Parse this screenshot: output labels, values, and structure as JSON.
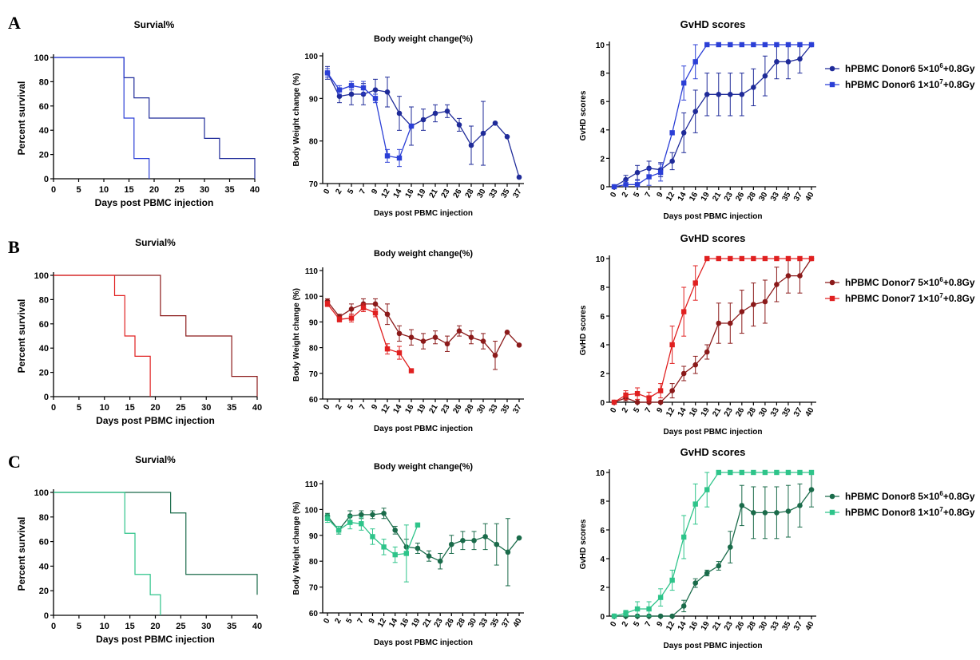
{
  "panel_letters": [
    "A",
    "B",
    "C"
  ],
  "chart_data": [
    {
      "id": "A-survival",
      "type": "line",
      "step": true,
      "title": "Survial%",
      "xlabel": "Days post PBMC injection",
      "ylabel": "Percent survival",
      "xlim": [
        0,
        40
      ],
      "ylim": [
        0,
        100
      ],
      "xticks": [
        "0",
        "5",
        "10",
        "15",
        "20",
        "25",
        "30",
        "35",
        "40"
      ],
      "yticks": [
        "0",
        "20",
        "40",
        "60",
        "80",
        "100"
      ],
      "series": [
        {
          "name": "hPBMC Donor6 5×10^6+0.8Gy",
          "color": "#1f2b99",
          "x": [
            0,
            14,
            16,
            19,
            30,
            33,
            40
          ],
          "y": [
            100,
            83.3,
            66.7,
            50,
            33.3,
            16.7,
            0
          ]
        },
        {
          "name": "hPBMC Donor6 1×10^7+0.8Gy",
          "color": "#2b3fd6",
          "x": [
            0,
            14,
            16,
            19
          ],
          "y": [
            100,
            50,
            16.7,
            0
          ]
        }
      ]
    },
    {
      "id": "A-weight",
      "type": "line",
      "title": "Body weight change(%)",
      "xlabel": "Days post PBMC injection",
      "ylabel": "Body Weight change (%)",
      "ylim": [
        70,
        100
      ],
      "categories": [
        "0",
        "2",
        "5",
        "7",
        "9",
        "12",
        "14",
        "16",
        "19",
        "21",
        "23",
        "26",
        "28",
        "30",
        "33",
        "35",
        "37"
      ],
      "yticks": [
        "70",
        "80",
        "90",
        "100"
      ],
      "series": [
        {
          "name": "hPBMC Donor6 5×10^6+0.8Gy",
          "color": "#1f2b99",
          "marker": "circle",
          "x": [
            0,
            2,
            5,
            7,
            9,
            12,
            14,
            16,
            19,
            21,
            23,
            26,
            28,
            30,
            33,
            35,
            37
          ],
          "y": [
            96,
            90.5,
            91,
            91,
            92,
            91.5,
            86.5,
            83.5,
            85,
            86.5,
            87,
            83.8,
            79,
            81.8,
            84.2,
            81,
            71.5
          ],
          "err": [
            1.5,
            1.5,
            2.5,
            2.5,
            2.5,
            3.5,
            4,
            4.5,
            2.5,
            2,
            1.5,
            1.5,
            4.5,
            7.5,
            0,
            0,
            0
          ]
        },
        {
          "name": "hPBMC Donor6 1×10^7+0.8Gy",
          "color": "#2b3fd6",
          "marker": "square",
          "x": [
            0,
            2,
            5,
            7,
            9,
            12,
            14,
            16
          ],
          "y": [
            96,
            92,
            93,
            92.5,
            90,
            76.5,
            76,
            83.5
          ],
          "err": [
            1,
            1,
            1,
            1.5,
            1,
            1.5,
            2,
            0
          ]
        }
      ]
    },
    {
      "id": "A-gvhd",
      "type": "line",
      "title": "GvHD scores",
      "xlabel": "Days post PBMC injection",
      "ylabel": "GvHD scores",
      "ylim": [
        0,
        10
      ],
      "categories": [
        "0",
        "2",
        "5",
        "7",
        "9",
        "12",
        "14",
        "16",
        "19",
        "21",
        "23",
        "26",
        "28",
        "30",
        "33",
        "35",
        "37",
        "40"
      ],
      "yticks": [
        "0",
        "2",
        "4",
        "6",
        "8",
        "10"
      ],
      "legend": "right",
      "series": [
        {
          "name": "hPBMC Donor6 5×10^6+0.8Gy",
          "label_base": "hPBMC Donor6 5×10",
          "label_exp": "6",
          "label_tail": "+0.8Gy",
          "color": "#1f2b99",
          "marker": "circle",
          "x": [
            0,
            2,
            5,
            7,
            9,
            12,
            14,
            16,
            19,
            21,
            23,
            26,
            28,
            30,
            33,
            35,
            37,
            40
          ],
          "y": [
            0,
            0.5,
            1,
            1.3,
            1.2,
            1.8,
            3.8,
            5.3,
            6.5,
            6.5,
            6.5,
            6.5,
            7,
            7.8,
            8.8,
            8.8,
            9,
            10
          ],
          "err": [
            0,
            0.3,
            0.5,
            0.5,
            0.5,
            0.6,
            1.4,
            1.5,
            1.5,
            1.5,
            1.5,
            1.5,
            1.3,
            1.4,
            1.2,
            1.2,
            1,
            0
          ]
        },
        {
          "name": "hPBMC Donor6 1×10^7+0.8Gy",
          "label_base": "hPBMC Donor6 1×10",
          "label_exp": "7",
          "label_tail": "+0.8Gy",
          "color": "#2b3fd6",
          "marker": "square",
          "x": [
            0,
            2,
            5,
            7,
            9,
            12,
            14,
            16,
            19,
            21,
            23,
            26,
            28,
            30,
            33,
            35,
            37,
            40
          ],
          "y": [
            0,
            0.15,
            0.15,
            0.7,
            1,
            3.8,
            7.3,
            8.8,
            10,
            10,
            10,
            10,
            10,
            10,
            10,
            10,
            10,
            10
          ],
          "err": [
            0,
            0.3,
            0.3,
            0.6,
            0.6,
            0,
            1.2,
            1.2,
            0,
            0,
            0,
            0,
            0,
            0,
            0,
            0,
            0,
            0
          ]
        }
      ]
    },
    {
      "id": "B-survival",
      "type": "line",
      "step": true,
      "title": "Survial%",
      "xlabel": "Days post PBMC injection",
      "ylabel": "Percent survival",
      "xlim": [
        0,
        40
      ],
      "ylim": [
        0,
        100
      ],
      "xticks": [
        "0",
        "5",
        "10",
        "15",
        "20",
        "25",
        "30",
        "35",
        "40"
      ],
      "yticks": [
        "0",
        "20",
        "40",
        "60",
        "80",
        "100"
      ],
      "series": [
        {
          "name": "hPBMC Donor7 5×10^6+0.8Gy",
          "color": "#8b1a1a",
          "x": [
            0,
            21,
            26,
            35,
            40
          ],
          "y": [
            100,
            66.7,
            50,
            16.7,
            0
          ]
        },
        {
          "name": "hPBMC Donor7 1×10^7+0.8Gy",
          "color": "#e02020",
          "x": [
            0,
            12,
            14,
            16,
            19
          ],
          "y": [
            100,
            83.3,
            50,
            33.3,
            0
          ]
        }
      ]
    },
    {
      "id": "B-weight",
      "type": "line",
      "title": "Body weight change(%)",
      "xlabel": "Days post PBMC injection",
      "ylabel": "Body Weight change (%)",
      "ylim": [
        60,
        110
      ],
      "categories": [
        "0",
        "2",
        "5",
        "7",
        "9",
        "12",
        "14",
        "16",
        "19",
        "21",
        "23",
        "26",
        "28",
        "30",
        "33",
        "35",
        "37"
      ],
      "yticks": [
        "60",
        "70",
        "80",
        "90",
        "100",
        "110"
      ],
      "series": [
        {
          "name": "hPBMC Donor7 5×10^6+0.8Gy",
          "color": "#8b1a1a",
          "marker": "circle",
          "x": [
            0,
            2,
            5,
            7,
            9,
            12,
            14,
            16,
            19,
            21,
            23,
            26,
            28,
            30,
            33,
            35,
            37
          ],
          "y": [
            98,
            92,
            95,
            97,
            97,
            93,
            85.5,
            84,
            82.5,
            84,
            81.5,
            86.5,
            84,
            82.5,
            77,
            86,
            81
          ],
          "err": [
            1,
            1,
            2,
            2,
            2,
            4,
            3,
            3,
            3,
            2.5,
            3,
            2,
            2.5,
            3,
            5.5,
            0,
            0
          ]
        },
        {
          "name": "hPBMC Donor7 1×10^7+0.8Gy",
          "color": "#e02020",
          "marker": "square",
          "x": [
            0,
            2,
            5,
            7,
            9,
            12,
            14,
            16
          ],
          "y": [
            97,
            91,
            91.5,
            95.5,
            93.5,
            79.5,
            78,
            71
          ],
          "err": [
            1,
            1,
            1.5,
            1.5,
            1.5,
            2,
            2.5,
            0
          ]
        }
      ]
    },
    {
      "id": "B-gvhd",
      "type": "line",
      "title": "GvHD scores",
      "xlabel": "Days post PBMC injection",
      "ylabel": "GvHD scores",
      "ylim": [
        0,
        10
      ],
      "categories": [
        "0",
        "2",
        "5",
        "7",
        "9",
        "12",
        "14",
        "16",
        "19",
        "21",
        "23",
        "26",
        "28",
        "30",
        "33",
        "35",
        "37",
        "40"
      ],
      "yticks": [
        "0",
        "2",
        "4",
        "6",
        "8",
        "10"
      ],
      "legend": "right",
      "series": [
        {
          "name": "hPBMC Donor7 5×10^6+0.8Gy",
          "label_base": "hPBMC Donor7 5×10",
          "label_exp": "6",
          "label_tail": "+0.8Gy",
          "color": "#8b1a1a",
          "marker": "circle",
          "x": [
            0,
            2,
            5,
            7,
            9,
            12,
            14,
            16,
            19,
            21,
            23,
            26,
            28,
            30,
            33,
            35,
            37,
            40
          ],
          "y": [
            0,
            0.3,
            0,
            0,
            0,
            0.8,
            2,
            2.6,
            3.5,
            5.5,
            5.5,
            6.3,
            6.8,
            7,
            8.2,
            8.8,
            8.8,
            10
          ],
          "err": [
            0,
            0.2,
            0,
            0,
            0,
            0.5,
            0.5,
            0.6,
            0.5,
            1.4,
            1.4,
            1.5,
            1.5,
            1.5,
            1.2,
            1.2,
            1.2,
            0
          ]
        },
        {
          "name": "hPBMC Donor7 1×10^7+0.8Gy",
          "label_base": "hPBMC Donor7 1×10",
          "label_exp": "7",
          "label_tail": "+0.8Gy",
          "color": "#e02020",
          "marker": "square",
          "x": [
            0,
            2,
            5,
            7,
            9,
            12,
            14,
            16,
            19,
            21,
            23,
            26,
            28,
            30,
            33,
            35,
            37,
            40
          ],
          "y": [
            0,
            0.5,
            0.6,
            0.3,
            0.8,
            4,
            6.3,
            8.3,
            10,
            10,
            10,
            10,
            10,
            10,
            10,
            10,
            10,
            10
          ],
          "err": [
            0,
            0.3,
            0.4,
            0.4,
            0.5,
            1.3,
            1.7,
            1.2,
            0,
            0,
            0,
            0,
            0,
            0,
            0,
            0,
            0,
            0
          ]
        }
      ]
    },
    {
      "id": "C-survival",
      "type": "line",
      "step": true,
      "title": "Survial%",
      "xlabel": "Days post PBMC injection",
      "ylabel": "Percent survival",
      "xlim": [
        0,
        40
      ],
      "ylim": [
        0,
        100
      ],
      "xticks": [
        "0",
        "5",
        "10",
        "15",
        "20",
        "25",
        "30",
        "35",
        "40"
      ],
      "yticks": [
        "0",
        "20",
        "40",
        "60",
        "80",
        "100"
      ],
      "series": [
        {
          "name": "hPBMC Donor8 5×10^6+0.8Gy",
          "color": "#1a6b4a",
          "x": [
            0,
            23,
            26,
            40
          ],
          "y": [
            100,
            83.3,
            33.3,
            16.7
          ]
        },
        {
          "name": "hPBMC Donor8 1×10^7+0.8Gy",
          "color": "#2ec48a",
          "x": [
            0,
            14,
            16,
            19,
            21
          ],
          "y": [
            100,
            66.7,
            33.3,
            16.7,
            0
          ]
        }
      ]
    },
    {
      "id": "C-weight",
      "type": "line",
      "title": "Body weight change(%)",
      "xlabel": "Days post PBMC injection",
      "ylabel": "Body Weight change (%)",
      "ylim": [
        60,
        110
      ],
      "categories": [
        "0",
        "2",
        "5",
        "7",
        "9",
        "12",
        "14",
        "16",
        "19",
        "21",
        "23",
        "26",
        "28",
        "30",
        "33",
        "35",
        "37",
        "40"
      ],
      "yticks": [
        "60",
        "70",
        "80",
        "90",
        "100",
        "110"
      ],
      "series": [
        {
          "name": "hPBMC Donor8 5×10^6+0.8Gy",
          "color": "#1a6b4a",
          "marker": "circle",
          "x": [
            0,
            2,
            5,
            7,
            9,
            12,
            14,
            16,
            19,
            21,
            23,
            26,
            28,
            30,
            33,
            35,
            37,
            40
          ],
          "y": [
            97.5,
            92,
            97.5,
            98,
            98,
            98.5,
            92,
            85.5,
            85,
            82,
            80,
            86.5,
            88,
            88,
            89.5,
            86.5,
            83.5,
            89
          ],
          "err": [
            1,
            1.5,
            2,
            1.5,
            1.5,
            2,
            1.5,
            3,
            2,
            2,
            3,
            3.5,
            3.5,
            3.5,
            5,
            8,
            13,
            0
          ]
        },
        {
          "name": "hPBMC Donor8 1×10^7+0.8Gy",
          "color": "#2ec48a",
          "marker": "square",
          "x": [
            0,
            2,
            5,
            7,
            9,
            12,
            14,
            16,
            19
          ],
          "y": [
            96.5,
            92,
            95,
            94.5,
            89.5,
            85.5,
            82.5,
            83,
            94
          ],
          "err": [
            1.5,
            1.5,
            2.5,
            2.5,
            3,
            3,
            3,
            11,
            0
          ]
        }
      ]
    },
    {
      "id": "C-gvhd",
      "type": "line",
      "title": "GvHD scores",
      "xlabel": "Days post PBMC injection",
      "ylabel": "GvHD scores",
      "ylim": [
        0,
        10
      ],
      "categories": [
        "0",
        "2",
        "5",
        "7",
        "9",
        "12",
        "14",
        "16",
        "19",
        "21",
        "23",
        "26",
        "28",
        "30",
        "33",
        "35",
        "37",
        "40"
      ],
      "yticks": [
        "0",
        "2",
        "4",
        "6",
        "8",
        "10"
      ],
      "legend": "right",
      "series": [
        {
          "name": "hPBMC Donor8 5×10^6+0.8Gy",
          "label_base": "hPBMC Donor8 5×10",
          "label_exp": "6",
          "label_tail": "+0.8Gy",
          "color": "#1a6b4a",
          "marker": "circle",
          "x": [
            0,
            2,
            5,
            7,
            9,
            12,
            14,
            16,
            19,
            21,
            23,
            26,
            28,
            30,
            33,
            35,
            37,
            40
          ],
          "y": [
            0,
            0,
            0,
            0,
            0,
            0,
            0.7,
            2.3,
            3,
            3.5,
            4.8,
            7.7,
            7.2,
            7.2,
            7.2,
            7.3,
            7.7,
            8.8
          ],
          "err": [
            0,
            0,
            0,
            0,
            0,
            0,
            0.4,
            0.3,
            0.2,
            0.3,
            1.1,
            1.4,
            1.8,
            1.8,
            1.8,
            1.8,
            1.5,
            1.2
          ]
        },
        {
          "name": "hPBMC Donor8 1×10^7+0.8Gy",
          "label_base": "hPBMC Donor8 1×10",
          "label_exp": "7",
          "label_tail": "+0.8Gy",
          "color": "#2ec48a",
          "marker": "square",
          "x": [
            0,
            2,
            5,
            7,
            9,
            12,
            14,
            16,
            19,
            21,
            23,
            26,
            28,
            30,
            33,
            35,
            37,
            40
          ],
          "y": [
            0,
            0.2,
            0.5,
            0.5,
            1.3,
            2.5,
            5.5,
            7.8,
            8.8,
            10,
            10,
            10,
            10,
            10,
            10,
            10,
            10,
            10
          ],
          "err": [
            0,
            0.2,
            0.5,
            0.5,
            0.6,
            0.7,
            1.5,
            1.4,
            1.2,
            0,
            0,
            0,
            0,
            0,
            0,
            0,
            0,
            0
          ]
        }
      ]
    }
  ]
}
